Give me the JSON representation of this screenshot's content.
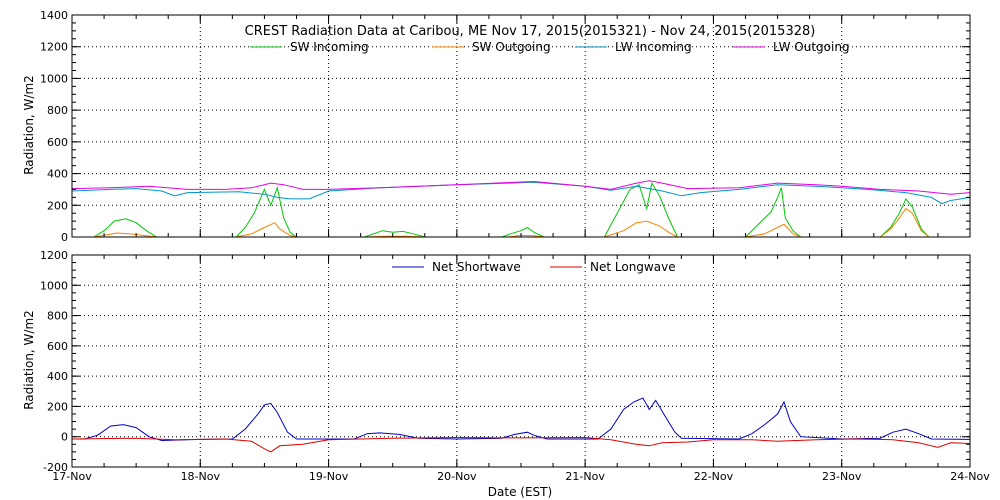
{
  "chart_data": [
    {
      "type": "line",
      "title": "CREST Radiation Data at Caribou, ME   Nov 17, 2015(2015321) - Nov 24, 2015(2015328)",
      "ylabel": "Radiation, W/m2",
      "xlabel": "",
      "ylim": [
        0,
        1400
      ],
      "yticks": [
        0,
        200,
        400,
        600,
        800,
        1000,
        1200,
        1400
      ],
      "xlim": [
        0,
        7
      ],
      "xticks": [
        0,
        1,
        2,
        3,
        4,
        5,
        6,
        7
      ],
      "xtick_labels": [
        "17-Nov",
        "18-Nov",
        "19-Nov",
        "20-Nov",
        "21-Nov",
        "22-Nov",
        "23-Nov",
        "24-Nov"
      ],
      "grid": true,
      "legend_position": "top",
      "series": [
        {
          "name": "SW Incoming",
          "color": "#00c800",
          "points": [
            [
              0.17,
              0
            ],
            [
              0.25,
              40
            ],
            [
              0.33,
              100
            ],
            [
              0.42,
              115
            ],
            [
              0.5,
              90
            ],
            [
              0.58,
              40
            ],
            [
              0.66,
              0
            ],
            [
              1.28,
              0
            ],
            [
              1.35,
              60
            ],
            [
              1.42,
              150
            ],
            [
              1.5,
              300
            ],
            [
              1.55,
              200
            ],
            [
              1.6,
              310
            ],
            [
              1.65,
              120
            ],
            [
              1.7,
              30
            ],
            [
              1.75,
              0
            ],
            [
              2.28,
              0
            ],
            [
              2.35,
              20
            ],
            [
              2.42,
              40
            ],
            [
              2.5,
              30
            ],
            [
              2.58,
              35
            ],
            [
              2.66,
              20
            ],
            [
              2.75,
              0
            ],
            [
              3.35,
              0
            ],
            [
              3.42,
              20
            ],
            [
              3.5,
              40
            ],
            [
              3.55,
              60
            ],
            [
              3.6,
              30
            ],
            [
              3.68,
              0
            ],
            [
              4.15,
              0
            ],
            [
              4.25,
              150
            ],
            [
              4.35,
              300
            ],
            [
              4.42,
              330
            ],
            [
              4.48,
              180
            ],
            [
              4.52,
              340
            ],
            [
              4.58,
              260
            ],
            [
              4.65,
              120
            ],
            [
              4.72,
              0
            ],
            [
              5.25,
              0
            ],
            [
              5.35,
              80
            ],
            [
              5.45,
              160
            ],
            [
              5.5,
              250
            ],
            [
              5.53,
              310
            ],
            [
              5.56,
              120
            ],
            [
              5.62,
              40
            ],
            [
              5.68,
              0
            ],
            [
              6.3,
              0
            ],
            [
              6.38,
              60
            ],
            [
              6.45,
              150
            ],
            [
              6.5,
              240
            ],
            [
              6.55,
              190
            ],
            [
              6.62,
              50
            ],
            [
              6.68,
              0
            ]
          ]
        },
        {
          "name": "SW Outgoing",
          "color": "#ff8000",
          "points": [
            [
              0.17,
              0
            ],
            [
              0.25,
              10
            ],
            [
              0.35,
              25
            ],
            [
              0.45,
              20
            ],
            [
              0.55,
              10
            ],
            [
              0.66,
              0
            ],
            [
              1.28,
              0
            ],
            [
              1.4,
              20
            ],
            [
              1.5,
              60
            ],
            [
              1.58,
              90
            ],
            [
              1.62,
              50
            ],
            [
              1.7,
              10
            ],
            [
              1.75,
              0
            ],
            [
              2.3,
              0
            ],
            [
              2.45,
              5
            ],
            [
              2.6,
              5
            ],
            [
              2.75,
              0
            ],
            [
              3.4,
              0
            ],
            [
              3.5,
              10
            ],
            [
              3.6,
              8
            ],
            [
              3.68,
              0
            ],
            [
              4.15,
              0
            ],
            [
              4.3,
              40
            ],
            [
              4.4,
              90
            ],
            [
              4.48,
              100
            ],
            [
              4.58,
              70
            ],
            [
              4.65,
              30
            ],
            [
              4.72,
              0
            ],
            [
              5.25,
              0
            ],
            [
              5.4,
              20
            ],
            [
              5.5,
              60
            ],
            [
              5.55,
              80
            ],
            [
              5.62,
              20
            ],
            [
              5.68,
              0
            ],
            [
              6.3,
              0
            ],
            [
              6.38,
              50
            ],
            [
              6.45,
              120
            ],
            [
              6.5,
              180
            ],
            [
              6.55,
              150
            ],
            [
              6.62,
              40
            ],
            [
              6.68,
              0
            ]
          ]
        },
        {
          "name": "LW Incoming",
          "color": "#0096c8",
          "points": [
            [
              0,
              290
            ],
            [
              0.3,
              300
            ],
            [
              0.5,
              305
            ],
            [
              0.7,
              290
            ],
            [
              0.8,
              260
            ],
            [
              0.9,
              280
            ],
            [
              1.3,
              285
            ],
            [
              1.5,
              270
            ],
            [
              1.6,
              250
            ],
            [
              1.7,
              240
            ],
            [
              1.85,
              240
            ],
            [
              2,
              290
            ],
            [
              2.4,
              310
            ],
            [
              3,
              330
            ],
            [
              3.6,
              345
            ],
            [
              4.0,
              320
            ],
            [
              4.2,
              295
            ],
            [
              4.4,
              320
            ],
            [
              4.6,
              290
            ],
            [
              4.75,
              260
            ],
            [
              4.9,
              280
            ],
            [
              5.2,
              300
            ],
            [
              5.5,
              330
            ],
            [
              5.8,
              320
            ],
            [
              6.0,
              310
            ],
            [
              6.2,
              300
            ],
            [
              6.5,
              280
            ],
            [
              6.7,
              250
            ],
            [
              6.78,
              210
            ],
            [
              6.85,
              230
            ],
            [
              7,
              250
            ]
          ]
        },
        {
          "name": "LW Outgoing",
          "color": "#e600e6",
          "points": [
            [
              0,
              305
            ],
            [
              0.3,
              310
            ],
            [
              0.6,
              320
            ],
            [
              0.9,
              300
            ],
            [
              1.2,
              300
            ],
            [
              1.4,
              310
            ],
            [
              1.55,
              340
            ],
            [
              1.65,
              330
            ],
            [
              1.8,
              300
            ],
            [
              2,
              300
            ],
            [
              2.4,
              310
            ],
            [
              3,
              330
            ],
            [
              3.6,
              350
            ],
            [
              4.0,
              320
            ],
            [
              4.2,
              300
            ],
            [
              4.4,
              340
            ],
            [
              4.5,
              355
            ],
            [
              4.6,
              340
            ],
            [
              4.8,
              305
            ],
            [
              5.2,
              310
            ],
            [
              5.5,
              340
            ],
            [
              5.8,
              330
            ],
            [
              6.0,
              320
            ],
            [
              6.3,
              300
            ],
            [
              6.6,
              290
            ],
            [
              6.85,
              270
            ],
            [
              7,
              280
            ]
          ]
        }
      ]
    },
    {
      "type": "line",
      "title": "",
      "ylabel": "Radiation, W/m2",
      "xlabel": "Date (EST)",
      "ylim": [
        -200,
        1200
      ],
      "yticks": [
        -200,
        0,
        200,
        400,
        600,
        800,
        1000,
        1200
      ],
      "xlim": [
        0,
        7
      ],
      "xticks": [
        0,
        1,
        2,
        3,
        4,
        5,
        6,
        7
      ],
      "xtick_labels": [
        "17-Nov",
        "18-Nov",
        "19-Nov",
        "20-Nov",
        "21-Nov",
        "22-Nov",
        "23-Nov",
        "24-Nov"
      ],
      "grid": true,
      "legend_position": "top",
      "series": [
        {
          "name": "Net Shortwave",
          "color": "#0000c8",
          "points": [
            [
              0,
              -15
            ],
            [
              0.1,
              -15
            ],
            [
              0.2,
              10
            ],
            [
              0.3,
              70
            ],
            [
              0.4,
              80
            ],
            [
              0.5,
              60
            ],
            [
              0.6,
              0
            ],
            [
              0.7,
              -25
            ],
            [
              1.0,
              -18
            ],
            [
              1.25,
              -15
            ],
            [
              1.35,
              50
            ],
            [
              1.45,
              150
            ],
            [
              1.5,
              210
            ],
            [
              1.55,
              220
            ],
            [
              1.6,
              160
            ],
            [
              1.68,
              30
            ],
            [
              1.75,
              -15
            ],
            [
              2.2,
              -15
            ],
            [
              2.3,
              20
            ],
            [
              2.4,
              25
            ],
            [
              2.55,
              15
            ],
            [
              2.7,
              -10
            ],
            [
              3.0,
              -15
            ],
            [
              3.35,
              -10
            ],
            [
              3.45,
              15
            ],
            [
              3.55,
              30
            ],
            [
              3.6,
              10
            ],
            [
              3.7,
              -15
            ],
            [
              4.1,
              -15
            ],
            [
              4.2,
              50
            ],
            [
              4.3,
              180
            ],
            [
              4.38,
              230
            ],
            [
              4.45,
              255
            ],
            [
              4.5,
              180
            ],
            [
              4.55,
              240
            ],
            [
              4.62,
              140
            ],
            [
              4.7,
              30
            ],
            [
              4.75,
              -10
            ],
            [
              5.2,
              -15
            ],
            [
              5.3,
              20
            ],
            [
              5.4,
              80
            ],
            [
              5.5,
              150
            ],
            [
              5.55,
              230
            ],
            [
              5.6,
              100
            ],
            [
              5.68,
              0
            ],
            [
              6.0,
              -15
            ],
            [
              6.3,
              -10
            ],
            [
              6.4,
              30
            ],
            [
              6.5,
              50
            ],
            [
              6.6,
              20
            ],
            [
              6.7,
              -15
            ],
            [
              7,
              -18
            ]
          ]
        },
        {
          "name": "Net Longwave",
          "color": "#dc0000",
          "points": [
            [
              0,
              -15
            ],
            [
              0.5,
              -10
            ],
            [
              0.8,
              -20
            ],
            [
              1.2,
              -15
            ],
            [
              1.4,
              -30
            ],
            [
              1.5,
              -80
            ],
            [
              1.55,
              -100
            ],
            [
              1.62,
              -60
            ],
            [
              1.8,
              -50
            ],
            [
              2.0,
              -20
            ],
            [
              2.5,
              -10
            ],
            [
              3.0,
              -5
            ],
            [
              3.5,
              -8
            ],
            [
              4.0,
              -5
            ],
            [
              4.2,
              -20
            ],
            [
              4.4,
              -50
            ],
            [
              4.5,
              -60
            ],
            [
              4.6,
              -40
            ],
            [
              4.8,
              -35
            ],
            [
              5.0,
              -20
            ],
            [
              5.3,
              -20
            ],
            [
              5.5,
              -30
            ],
            [
              5.8,
              -20
            ],
            [
              6.1,
              -15
            ],
            [
              6.4,
              -20
            ],
            [
              6.6,
              -40
            ],
            [
              6.75,
              -70
            ],
            [
              6.85,
              -40
            ],
            [
              7,
              -45
            ]
          ]
        }
      ]
    }
  ]
}
